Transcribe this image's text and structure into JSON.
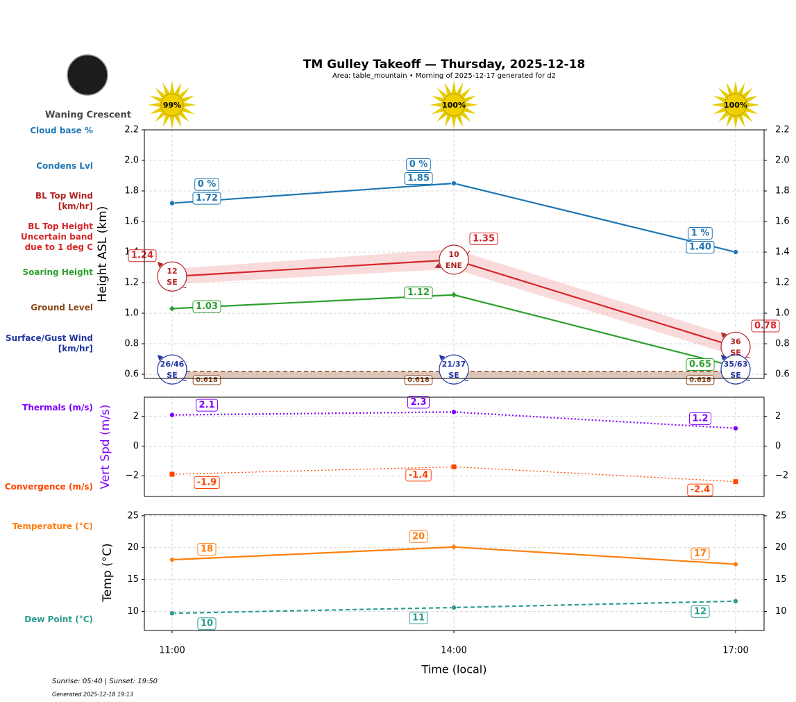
{
  "title": "TM Gulley Takeoff — Thursday, 2025-12-18",
  "subtitle": "Area: table_mountain • Morning of 2025-12-17 generated for d2",
  "moon_phase": "Waning Crescent",
  "sunshine": {
    "values": [
      99,
      100,
      100
    ],
    "value_labels": [
      "99%",
      "100%",
      "100%"
    ]
  },
  "footer": "Sunrise: 05:40 | Sunset: 19:50",
  "generated": "Generated 2025-12-18 19:13",
  "chart_data": [
    {
      "type": "line",
      "ylabel": "Height ASL (km)",
      "categories": [
        "11:00",
        "14:00",
        "17:00"
      ],
      "ylim": [
        0.573,
        2.2
      ],
      "yticks": [
        0.6,
        0.8,
        {
          "value": 1,
          "label": "1.0"
        },
        1.2,
        1.4,
        1.6,
        1.8,
        {
          "value": 2,
          "label": "2.0"
        },
        2.2
      ],
      "grid": true,
      "series": [
        {
          "name": "Cloud base %",
          "color": "#1f77b4",
          "values": [
            0,
            0,
            1
          ],
          "value_labels": [
            "0 %",
            "0 %",
            "1 %"
          ]
        },
        {
          "name": "Condens Lvl",
          "color": "#1f77b4",
          "values": [
            1.72,
            1.85,
            1.4
          ],
          "value_labels": [
            "1.72",
            "1.85",
            "1.40"
          ],
          "linestyle": "solid",
          "marker": "circle"
        },
        {
          "name": "BL Top Wind\n[km/hr]",
          "color": "#b22222",
          "values": [
            12,
            10,
            36
          ],
          "directions": [
            "SE",
            "ENE",
            "SE"
          ]
        },
        {
          "name": "BL Top Height\nUncertain band\ndue to 1 deg C",
          "color": "#d62728",
          "values": [
            1.24,
            1.35,
            0.78
          ],
          "band_low": [
            1.19,
            1.29,
            0.72
          ],
          "band_high": [
            1.29,
            1.42,
            0.84
          ],
          "linestyle": "solid",
          "marker": "none"
        },
        {
          "name": "Soaring Height",
          "color": "#2ca02c",
          "values": [
            1.03,
            1.12,
            0.65
          ],
          "linestyle": "solid",
          "marker": "diamond"
        },
        {
          "name": "Ground Level",
          "color": "#8b4513",
          "values": [
            0.618,
            0.618,
            0.618
          ],
          "linestyle": "dashed"
        },
        {
          "name": "Surface/Gust Wind\n[km/hr]",
          "color": "#2236a0",
          "values": [
            26,
            21,
            35
          ],
          "gust": [
            46,
            37,
            63
          ],
          "value_labels": [
            "26/46",
            "21/37",
            "35/63"
          ],
          "directions": [
            "SE",
            "SE",
            "SE"
          ]
        }
      ]
    },
    {
      "type": "line",
      "ylabel": "Vert Spd (m/s)",
      "categories": [
        "11:00",
        "14:00",
        "17:00"
      ],
      "ylim": [
        -3.4,
        3.3
      ],
      "yticks": [
        {
          "value": -2,
          "label": "−2"
        },
        0,
        2
      ],
      "grid": true,
      "series": [
        {
          "name": "Thermals (m/s)",
          "color": "#7f00ff",
          "values": [
            2.1,
            2.3,
            1.2
          ],
          "linestyle": "dotted",
          "marker": "circle"
        },
        {
          "name": "Convergence (m/s)",
          "color": "#ff4500",
          "values": [
            -1.9,
            -1.4,
            -2.4
          ],
          "linestyle": "dotted",
          "marker": "square"
        }
      ]
    },
    {
      "type": "line",
      "ylabel": "Temp (°C)",
      "xlabel": "Time (local)",
      "categories": [
        "11:00",
        "14:00",
        "17:00"
      ],
      "ylim": [
        7,
        25.2
      ],
      "yticks": [
        10,
        15,
        20,
        25
      ],
      "grid": true,
      "series": [
        {
          "name": "Temperature (°C)",
          "color": "#ff7f0e",
          "values": [
            18.1,
            20.1,
            17.4
          ],
          "value_labels": [
            "18",
            "20",
            "17"
          ],
          "linestyle": "solid",
          "marker": "diamond"
        },
        {
          "name": "Dew Point (°C)",
          "color": "#2a9d8f",
          "values": [
            9.7,
            10.6,
            11.6
          ],
          "value_labels": [
            "10",
            "11",
            "12"
          ],
          "linestyle": "dashed",
          "marker": "circle"
        }
      ]
    }
  ]
}
